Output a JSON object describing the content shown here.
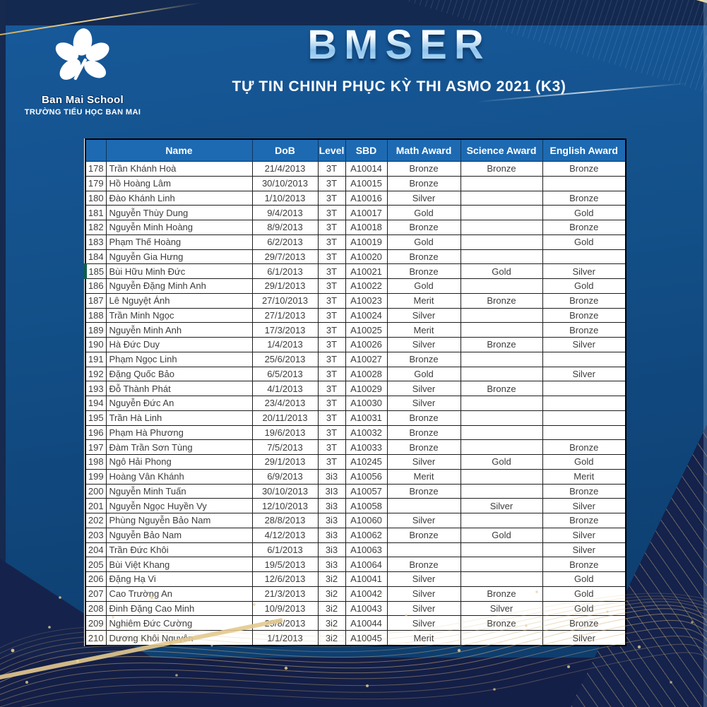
{
  "branding": {
    "name": "Ban Mai School",
    "tagline": "TRƯỜNG TIỂU HỌC BAN MAI"
  },
  "header": {
    "title": "BMSER",
    "subtitle": "TỰ TIN CHINH PHỤC KỲ THI ASMO 2021 (K3)"
  },
  "colors": {
    "header_bg": "#1d6ab2",
    "panel_blue": "#135089",
    "frame_navy": "#14294f",
    "accent_gold": "#d9bc7c",
    "row_marker_green": "#0d5f4b"
  },
  "table": {
    "columns": [
      "",
      "Name",
      "DoB",
      "Level",
      "SBD",
      "Math Award",
      "Science Award",
      "English Award"
    ],
    "rows": [
      {
        "no": "178",
        "name": "Trần Khánh Hoà",
        "dob": "21/4/2013",
        "level": "3T",
        "sbd": "A10014",
        "math": "Bronze",
        "science": "Bronze",
        "english": "Bronze"
      },
      {
        "no": "179",
        "name": "Hồ Hoàng Lâm",
        "dob": "30/10/2013",
        "level": "3T",
        "sbd": "A10015",
        "math": "Bronze",
        "science": "",
        "english": ""
      },
      {
        "no": "180",
        "name": "Đào Khánh Linh",
        "dob": "1/10/2013",
        "level": "3T",
        "sbd": "A10016",
        "math": "Silver",
        "science": "",
        "english": "Bronze"
      },
      {
        "no": "181",
        "name": "Nguyễn Thùy Dung",
        "dob": "9/4/2013",
        "level": "3T",
        "sbd": "A10017",
        "math": "Gold",
        "science": "",
        "english": "Gold"
      },
      {
        "no": "182",
        "name": "Nguyễn Minh Hoàng",
        "dob": "8/9/2013",
        "level": "3T",
        "sbd": "A10018",
        "math": "Bronze",
        "science": "",
        "english": "Bronze"
      },
      {
        "no": "183",
        "name": "Phạm Thế Hoàng",
        "dob": "6/2/2013",
        "level": "3T",
        "sbd": "A10019",
        "math": "Gold",
        "science": "",
        "english": "Gold"
      },
      {
        "no": "184",
        "name": "Nguyễn Gia Hưng",
        "dob": "29/7/2013",
        "level": "3T",
        "sbd": "A10020",
        "math": "Bronze",
        "science": "",
        "english": ""
      },
      {
        "no": "185",
        "name": "Bùi Hữu Minh Đức",
        "dob": "6/1/2013",
        "level": "3T",
        "sbd": "A10021",
        "math": "Bronze",
        "science": "Gold",
        "english": "Silver"
      },
      {
        "no": "186",
        "name": "Nguyễn Đặng Minh Anh",
        "dob": "29/1/2013",
        "level": "3T",
        "sbd": "A10022",
        "math": "Gold",
        "science": "",
        "english": "Gold"
      },
      {
        "no": "187",
        "name": "Lê Nguyệt Ánh",
        "dob": "27/10/2013",
        "level": "3T",
        "sbd": "A10023",
        "math": "Merit",
        "science": "Bronze",
        "english": "Bronze"
      },
      {
        "no": "188",
        "name": "Trần Minh Ngọc",
        "dob": "27/1/2013",
        "level": "3T",
        "sbd": "A10024",
        "math": "Silver",
        "science": "",
        "english": "Bronze"
      },
      {
        "no": "189",
        "name": "Nguyễn Minh Anh",
        "dob": "17/3/2013",
        "level": "3T",
        "sbd": "A10025",
        "math": "Merit",
        "science": "",
        "english": "Bronze"
      },
      {
        "no": "190",
        "name": "Hà Đức Duy",
        "dob": "1/4/2013",
        "level": "3T",
        "sbd": "A10026",
        "math": "Silver",
        "science": "Bronze",
        "english": "Silver"
      },
      {
        "no": "191",
        "name": "Phạm Ngọc Linh",
        "dob": "25/6/2013",
        "level": "3T",
        "sbd": "A10027",
        "math": "Bronze",
        "science": "",
        "english": ""
      },
      {
        "no": "192",
        "name": "Đặng Quốc Bảo",
        "dob": "6/5/2013",
        "level": "3T",
        "sbd": "A10028",
        "math": "Gold",
        "science": "",
        "english": "Silver"
      },
      {
        "no": "193",
        "name": "Đỗ Thành Phát",
        "dob": "4/1/2013",
        "level": "3T",
        "sbd": "A10029",
        "math": "Silver",
        "science": "Bronze",
        "english": ""
      },
      {
        "no": "194",
        "name": "Nguyễn Đức An",
        "dob": "23/4/2013",
        "level": "3T",
        "sbd": "A10030",
        "math": "Silver",
        "science": "",
        "english": ""
      },
      {
        "no": "195",
        "name": "Trần Hà Linh",
        "dob": "20/11/2013",
        "level": "3T",
        "sbd": "A10031",
        "math": "Bronze",
        "science": "",
        "english": ""
      },
      {
        "no": "196",
        "name": "Phạm Hà Phương",
        "dob": "19/6/2013",
        "level": "3T",
        "sbd": "A10032",
        "math": "Bronze",
        "science": "",
        "english": ""
      },
      {
        "no": "197",
        "name": "Đàm Trần Sơn Tùng",
        "dob": "7/5/2013",
        "level": "3T",
        "sbd": "A10033",
        "math": "Bronze",
        "science": "",
        "english": "Bronze"
      },
      {
        "no": "198",
        "name": "Ngô Hải Phong",
        "dob": "29/1/2013",
        "level": "3T",
        "sbd": "A10245",
        "math": "Silver",
        "science": "Gold",
        "english": "Gold"
      },
      {
        "no": "199",
        "name": "Hoàng Vân Khánh",
        "dob": "6/9/2013",
        "level": "3i3",
        "sbd": "A10056",
        "math": "Merit",
        "science": "",
        "english": "Merit"
      },
      {
        "no": "200",
        "name": "Nguyễn Minh Tuấn",
        "dob": "30/10/2013",
        "level": "3I3",
        "sbd": "A10057",
        "math": "Bronze",
        "science": "",
        "english": "Bronze"
      },
      {
        "no": "201",
        "name": "Nguyễn Ngọc Huyền Vy",
        "dob": "12/10/2013",
        "level": "3i3",
        "sbd": "A10058",
        "math": "",
        "science": "Silver",
        "english": "Silver"
      },
      {
        "no": "202",
        "name": "Phùng Nguyễn Bảo Nam",
        "dob": "28/8/2013",
        "level": "3i3",
        "sbd": "A10060",
        "math": "Silver",
        "science": "",
        "english": "Bronze"
      },
      {
        "no": "203",
        "name": "Nguyễn Bảo Nam",
        "dob": "4/12/2013",
        "level": "3i3",
        "sbd": "A10062",
        "math": "Bronze",
        "science": "Gold",
        "english": "Silver"
      },
      {
        "no": "204",
        "name": "Trần Đức Khôi",
        "dob": "6/1/2013",
        "level": "3i3",
        "sbd": "A10063",
        "math": "",
        "science": "",
        "english": "Silver"
      },
      {
        "no": "205",
        "name": "Bùi Việt Khang",
        "dob": "19/5/2013",
        "level": "3i3",
        "sbd": "A10064",
        "math": "Bronze",
        "science": "",
        "english": "Bronze"
      },
      {
        "no": "206",
        "name": "Đặng Hạ Vi",
        "dob": "12/6/2013",
        "level": "3i2",
        "sbd": "A10041",
        "math": "Silver",
        "science": "",
        "english": "Gold"
      },
      {
        "no": "207",
        "name": "Cao Trường An",
        "dob": "21/3/2013",
        "level": "3i2",
        "sbd": "A10042",
        "math": "Silver",
        "science": "Bronze",
        "english": "Gold"
      },
      {
        "no": "208",
        "name": "Đinh Đặng Cao Minh",
        "dob": "10/9/2013",
        "level": "3i2",
        "sbd": "A10043",
        "math": "Silver",
        "science": "Silver",
        "english": "Gold"
      },
      {
        "no": "209",
        "name": "Nghiêm Đức Cường",
        "dob": "29/8/2013",
        "level": "3i2",
        "sbd": "A10044",
        "math": "Silver",
        "science": "Bronze",
        "english": "Bronze"
      },
      {
        "no": "210",
        "name": "Dương Khôi Nguyên",
        "dob": "1/1/2013",
        "level": "3i2",
        "sbd": "A10045",
        "math": "Merit",
        "science": "",
        "english": "Silver"
      }
    ]
  }
}
